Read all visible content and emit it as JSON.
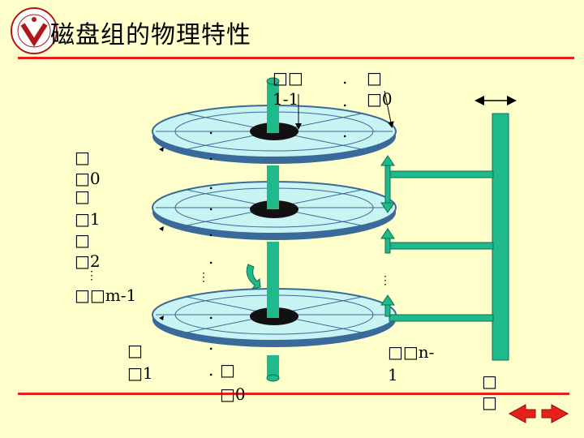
{
  "slide": {
    "title": "磁盘组的物理特性",
    "colors": {
      "background": "#ffffcc",
      "accent_line": "#e8201a",
      "spindle": "#1fba8c",
      "platter_fill": "#c8f4f4",
      "platter_edge": "#3a6a9a"
    }
  },
  "labels": {
    "top_cylinder_a": "□□",
    "top_cylinder_b": "1-1",
    "top_dots_a": ".",
    "top_dots_b": ".",
    "top_dots_c": ".",
    "top_right_a": "□",
    "top_right_b": "□0",
    "left_list": [
      "□",
      "□0",
      "□",
      "□1",
      "□",
      "□2",
      "⋮",
      "□□m-1"
    ],
    "mid_dots": [
      ".",
      ".",
      ".",
      ".",
      ".",
      "."
    ],
    "mid_left_vdots": "⋮",
    "mid_right_vdots": "⋮",
    "bottom_dots": [
      ".",
      ".",
      "."
    ],
    "bottom_left_a": "□",
    "bottom_left_b": "□1",
    "bottom_center_a": "□",
    "bottom_center_b": "□0",
    "bottom_right_a": "□□n-",
    "bottom_right_b": "1",
    "arm_label_a": "□",
    "arm_label_b": "□"
  },
  "icons": [
    "logo-seal-icon",
    "previous-arrow-icon",
    "next-arrow-icon",
    "rotation-arrow-icon",
    "double-arrow-icon"
  ]
}
